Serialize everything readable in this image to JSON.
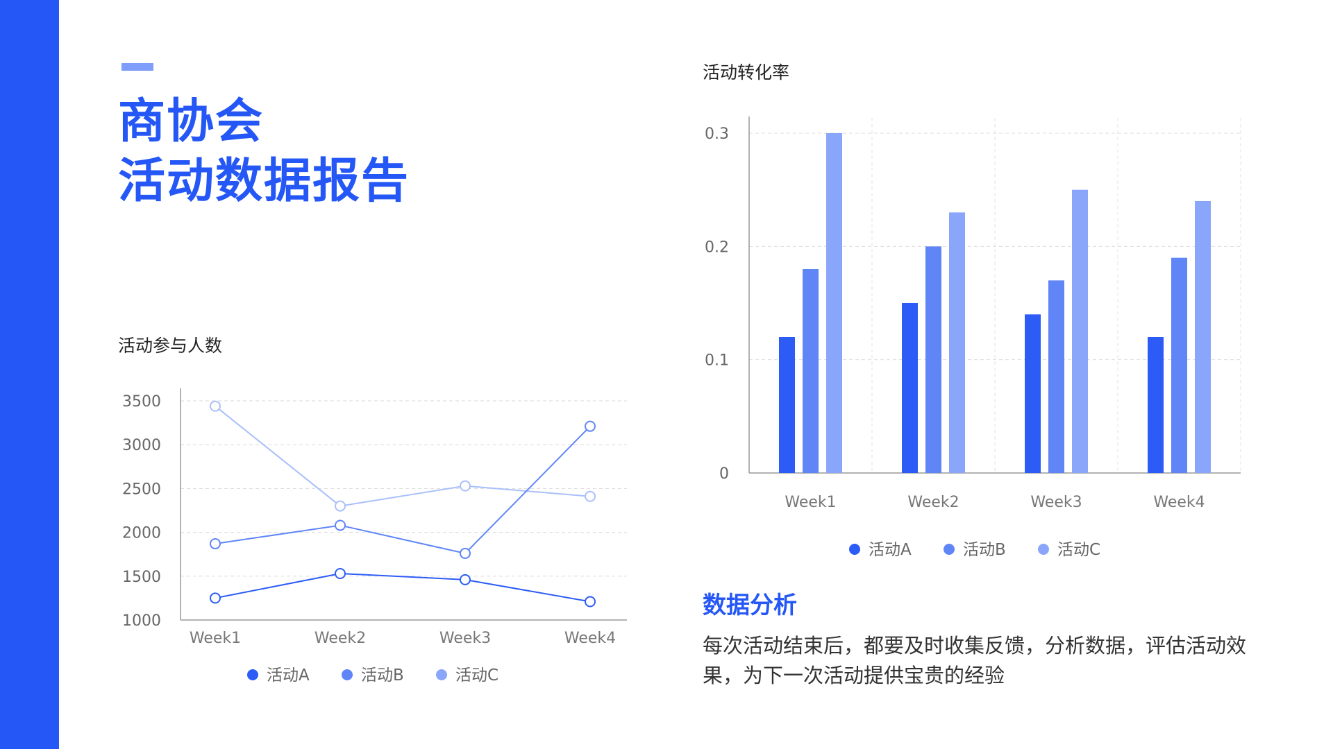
{
  "title": {
    "line1": "商协会",
    "line2": "活动数据报告"
  },
  "colors": {
    "accent": "#2457f5",
    "series_a": "#2c5cf5",
    "series_b": "#5f85f7",
    "series_c": "#8aa6fa",
    "series_c_line": "#a9bffb"
  },
  "analysis": {
    "heading": "数据分析",
    "body": "每次活动结束后，都要及时收集反馈，分析数据，评估活动效果，为下一次活动提供宝贵的经验"
  },
  "chart_data": [
    {
      "type": "line",
      "title": "活动参与人数",
      "categories": [
        "Week1",
        "Week2",
        "Week3",
        "Week4"
      ],
      "series": [
        {
          "name": "活动A",
          "values": [
            1250,
            1530,
            1460,
            1210
          ]
        },
        {
          "name": "活动B",
          "values": [
            1870,
            2080,
            1760,
            3210
          ]
        },
        {
          "name": "活动C",
          "values": [
            3440,
            2300,
            2530,
            2410
          ]
        }
      ],
      "ylim": [
        1000,
        3500
      ],
      "yticks": [
        "1000",
        "1500",
        "2000",
        "2500",
        "3000",
        "3500"
      ],
      "grid": true,
      "legend": "bottom"
    },
    {
      "type": "bar",
      "title": "活动转化率",
      "categories": [
        "Week1",
        "Week2",
        "Week3",
        "Week4"
      ],
      "series": [
        {
          "name": "活动A",
          "values": [
            0.12,
            0.15,
            0.14,
            0.12
          ]
        },
        {
          "name": "活动B",
          "values": [
            0.18,
            0.2,
            0.17,
            0.19
          ]
        },
        {
          "name": "活动C",
          "values": [
            0.3,
            0.23,
            0.25,
            0.24
          ]
        }
      ],
      "ylim": [
        0,
        0.3
      ],
      "yticks": [
        "0",
        "0.1",
        "0.2",
        "0.3"
      ],
      "grid": true,
      "legend": "bottom"
    }
  ]
}
